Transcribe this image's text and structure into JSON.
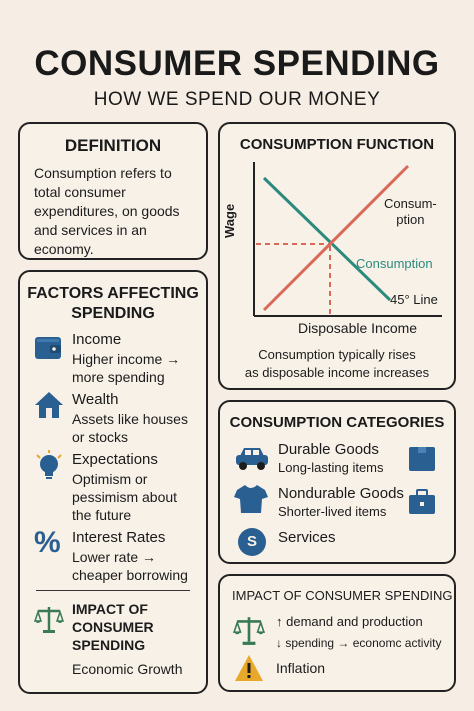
{
  "header": {
    "title": "CONSUMER SPENDING",
    "subtitle": "HOW WE SPEND OUR MONEY"
  },
  "definition": {
    "title": "DEFINITION",
    "text": "Consumption refers to total consumer expenditures, on goods and services in an economy."
  },
  "factors": {
    "title_line1": "FACTORS AFFECTING",
    "title_line2": "SPENDING",
    "items": [
      {
        "title": "Income",
        "desc_line1": "Higher income →",
        "desc_line2": "more spending",
        "icon": "wallet-icon"
      },
      {
        "title": "Wealth",
        "desc_line1": "Assets like houses",
        "desc_line2": "or stocks",
        "icon": "house-icon"
      },
      {
        "title": "Expectations",
        "desc_line1": "Optimism or",
        "desc_line2": "pessimism about",
        "desc_line3": "the future",
        "icon": "lightbulb-icon"
      },
      {
        "title": "Interest Rates",
        "desc_line1": "Lower rate →",
        "desc_line2": "cheaper borrowing",
        "icon": "percent-icon"
      }
    ],
    "impact": {
      "title_line1": "IMPACT OF",
      "title_line2": "CONSUMER",
      "title_line3": "SPENDING",
      "text": "Economic Growth",
      "icon": "scales-icon"
    }
  },
  "consumption_function": {
    "title": "CONSUMPTION FUNCTION",
    "y_label": "Wage",
    "x_label": "Disposable Income",
    "line_label_red_1": "Consum-",
    "line_label_red_2": "ption",
    "line_label_green": "Consumption",
    "line_label_45": "45° Line",
    "caption_line1": "Consumption typically rises",
    "caption_line2": "as disposable income increases"
  },
  "categories": {
    "title": "CONSUMPTION CATEGORIES",
    "items": [
      {
        "title": "Durable Goods",
        "desc": "Long-lasting items",
        "icon": "car-icon"
      },
      {
        "title": "Nondurable Goods",
        "desc": "Shorter-lived items",
        "icon": "shirt-icon"
      },
      {
        "title": "Services",
        "desc": "",
        "icon": "dollar-coin-icon",
        "coin_text": "S"
      }
    ]
  },
  "impact_right": {
    "title": "IMPACT OF CONSUMER SPENDING",
    "line1_arrow": "↑",
    "line1": "demand and production",
    "line2_arrow": "↓",
    "line2_a": "spending",
    "line2_b": "→",
    "line2_c": "economc activity",
    "inflation": "Inflation"
  },
  "colors": {
    "background": "#f6eee4",
    "card_border": "#222222",
    "icon_blue": "#2a5f91",
    "icon_green": "#3a7a55",
    "icon_yellow": "#e8a82a",
    "red_line": "#d96a5a",
    "teal_line": "#2b8a7d"
  }
}
